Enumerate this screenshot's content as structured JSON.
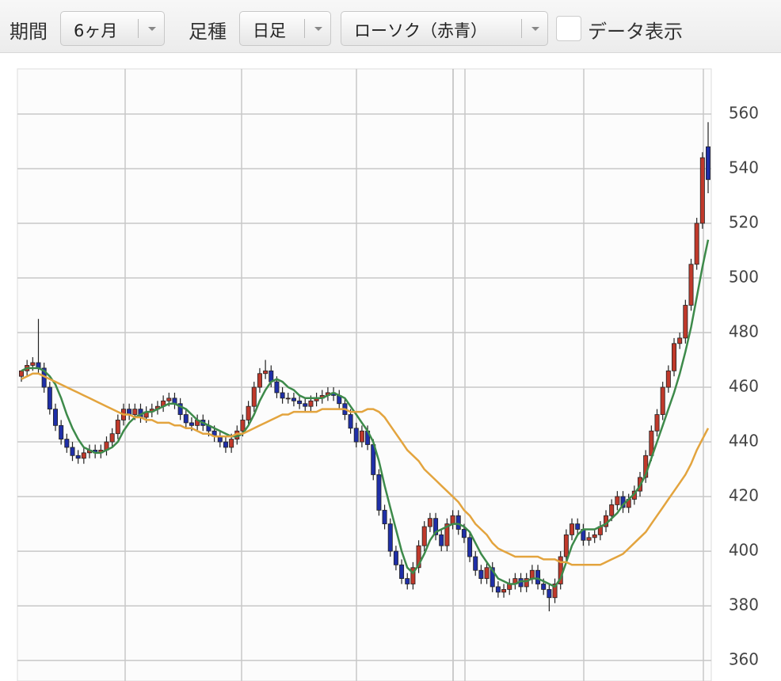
{
  "toolbar": {
    "period_label": "期間",
    "period_value": "6ヶ月",
    "bar_label": "足種",
    "bar_value": "日足",
    "style_value": "ローソク（赤青）",
    "data_toggle": "データ表示"
  },
  "chart_data": {
    "type": "candlestick",
    "up_color": "#c0392b",
    "down_color": "#1f2fa8",
    "grid": true,
    "ylim": [
      352.5,
      576.5
    ],
    "yticks": [
      360,
      380,
      400,
      420,
      440,
      460,
      480,
      500,
      520,
      540,
      560
    ],
    "open": [
      464,
      466,
      468,
      469,
      467,
      460,
      452,
      446,
      441,
      438,
      435,
      434,
      436,
      437,
      436,
      437,
      440,
      443,
      448,
      452,
      450,
      452,
      449,
      451,
      452,
      453,
      455,
      456,
      454,
      450,
      447,
      446,
      448,
      446,
      444,
      442,
      440,
      438,
      441,
      444,
      448,
      453,
      460,
      465,
      466,
      462,
      458,
      456,
      456,
      455,
      454,
      453,
      455,
      456,
      457,
      458,
      457,
      454,
      450,
      445,
      440,
      444,
      439,
      428,
      415,
      410,
      400,
      395,
      390,
      388,
      394,
      402,
      409,
      412,
      406,
      402,
      410,
      413,
      408,
      405,
      398,
      393,
      390,
      394,
      387,
      385,
      386,
      388,
      390,
      387,
      390,
      393,
      388,
      386,
      383,
      388,
      398,
      406,
      410,
      408,
      404,
      405,
      406,
      409,
      413,
      417,
      420,
      416,
      419,
      422,
      427,
      435,
      444,
      450,
      460,
      466,
      476,
      478,
      490,
      505,
      520,
      548
    ],
    "high": [
      466,
      470,
      471,
      485,
      469,
      462,
      454,
      448,
      443,
      440,
      437,
      438,
      439,
      439,
      439,
      442,
      445,
      450,
      454,
      454,
      454,
      454,
      453,
      454,
      455,
      457,
      458,
      458,
      456,
      452,
      449,
      450,
      450,
      448,
      446,
      444,
      442,
      443,
      446,
      450,
      455,
      462,
      467,
      470,
      468,
      464,
      460,
      458,
      458,
      457,
      456,
      457,
      458,
      459,
      460,
      460,
      459,
      456,
      452,
      447,
      446,
      446,
      441,
      430,
      417,
      412,
      402,
      397,
      392,
      396,
      404,
      411,
      414,
      414,
      408,
      412,
      415,
      415,
      410,
      407,
      400,
      395,
      396,
      396,
      389,
      388,
      390,
      392,
      392,
      392,
      395,
      395,
      390,
      388,
      390,
      400,
      408,
      412,
      412,
      410,
      407,
      408,
      411,
      415,
      419,
      422,
      422,
      421,
      424,
      429,
      437,
      446,
      452,
      462,
      468,
      478,
      480,
      492,
      507,
      522,
      546,
      557
    ],
    "low": [
      462,
      464,
      466,
      465,
      458,
      450,
      444,
      439,
      436,
      433,
      432,
      432,
      434,
      434,
      434,
      435,
      438,
      441,
      446,
      448,
      448,
      447,
      447,
      449,
      450,
      451,
      453,
      452,
      448,
      445,
      444,
      444,
      444,
      442,
      440,
      438,
      436,
      436,
      439,
      442,
      446,
      451,
      458,
      463,
      460,
      456,
      454,
      454,
      453,
      452,
      451,
      451,
      453,
      454,
      455,
      455,
      452,
      448,
      443,
      438,
      438,
      437,
      426,
      413,
      408,
      398,
      393,
      388,
      386,
      386,
      392,
      400,
      407,
      404,
      400,
      400,
      408,
      406,
      403,
      396,
      391,
      388,
      388,
      385,
      383,
      383,
      384,
      386,
      385,
      385,
      388,
      386,
      384,
      378,
      381,
      386,
      396,
      404,
      406,
      402,
      402,
      403,
      404,
      407,
      411,
      415,
      414,
      414,
      417,
      420,
      425,
      433,
      442,
      448,
      458,
      464,
      474,
      476,
      488,
      503,
      518,
      531
    ],
    "close": [
      466,
      468,
      469,
      467,
      460,
      452,
      446,
      441,
      438,
      435,
      434,
      436,
      437,
      436,
      437,
      440,
      443,
      448,
      452,
      450,
      452,
      449,
      451,
      452,
      453,
      455,
      456,
      454,
      450,
      447,
      446,
      448,
      446,
      444,
      442,
      440,
      438,
      441,
      444,
      448,
      453,
      460,
      465,
      466,
      462,
      458,
      456,
      456,
      455,
      454,
      453,
      455,
      456,
      457,
      458,
      457,
      454,
      450,
      445,
      440,
      444,
      439,
      428,
      415,
      410,
      400,
      395,
      390,
      388,
      394,
      402,
      409,
      412,
      406,
      402,
      410,
      413,
      408,
      405,
      398,
      393,
      390,
      394,
      387,
      385,
      386,
      388,
      390,
      387,
      390,
      393,
      388,
      386,
      383,
      388,
      398,
      406,
      410,
      408,
      404,
      405,
      406,
      409,
      413,
      417,
      420,
      416,
      419,
      422,
      427,
      435,
      444,
      450,
      460,
      466,
      476,
      478,
      490,
      505,
      520,
      544,
      536
    ],
    "series": [
      {
        "color": "#3d8a4a",
        "values": [
          466,
          467,
          467,
          467,
          466,
          464,
          461,
          456,
          450,
          445,
          441,
          438,
          437,
          436,
          436,
          437,
          438,
          440,
          444,
          447,
          449,
          450,
          451,
          451,
          452,
          453,
          454,
          454,
          453,
          452,
          450,
          448,
          447,
          446,
          445,
          444,
          443,
          442,
          442,
          443,
          446,
          450,
          455,
          459,
          462,
          463,
          462,
          460,
          459,
          457,
          456,
          456,
          456,
          456,
          457,
          458,
          457,
          456,
          453,
          450,
          447,
          444,
          440,
          433,
          424,
          416,
          408,
          400,
          394,
          392,
          395,
          399,
          404,
          407,
          408,
          409,
          410,
          410,
          409,
          407,
          403,
          399,
          396,
          393,
          390,
          389,
          388,
          388,
          389,
          389,
          390,
          390,
          389,
          388,
          387,
          390,
          396,
          402,
          406,
          408,
          408,
          408,
          409,
          410,
          412,
          414,
          417,
          419,
          421,
          424,
          428,
          434,
          440,
          446,
          452,
          458,
          465,
          473,
          482,
          493,
          504,
          514
        ]
      },
      {
        "color": "#e3a43e",
        "values": [
          463,
          464,
          465,
          465,
          464,
          463,
          462,
          461,
          460,
          459,
          458,
          457,
          456,
          455,
          454,
          453,
          452,
          451,
          450,
          450,
          449,
          449,
          448,
          448,
          447,
          447,
          447,
          446,
          446,
          445,
          445,
          444,
          443,
          443,
          442,
          442,
          442,
          442,
          443,
          443,
          444,
          445,
          446,
          447,
          448,
          449,
          450,
          450,
          451,
          451,
          451,
          451,
          451,
          452,
          452,
          452,
          452,
          452,
          451,
          451,
          451,
          452,
          452,
          451,
          449,
          446,
          443,
          440,
          437,
          435,
          433,
          430,
          428,
          426,
          424,
          422,
          420,
          418,
          415,
          413,
          410,
          408,
          406,
          403,
          401,
          400,
          399,
          398,
          398,
          398,
          398,
          398,
          397,
          397,
          397,
          396,
          396,
          395,
          395,
          395,
          395,
          395,
          395,
          396,
          397,
          398,
          399,
          401,
          403,
          405,
          407,
          410,
          413,
          416,
          419,
          422,
          425,
          428,
          432,
          437,
          441,
          445
        ]
      }
    ]
  }
}
